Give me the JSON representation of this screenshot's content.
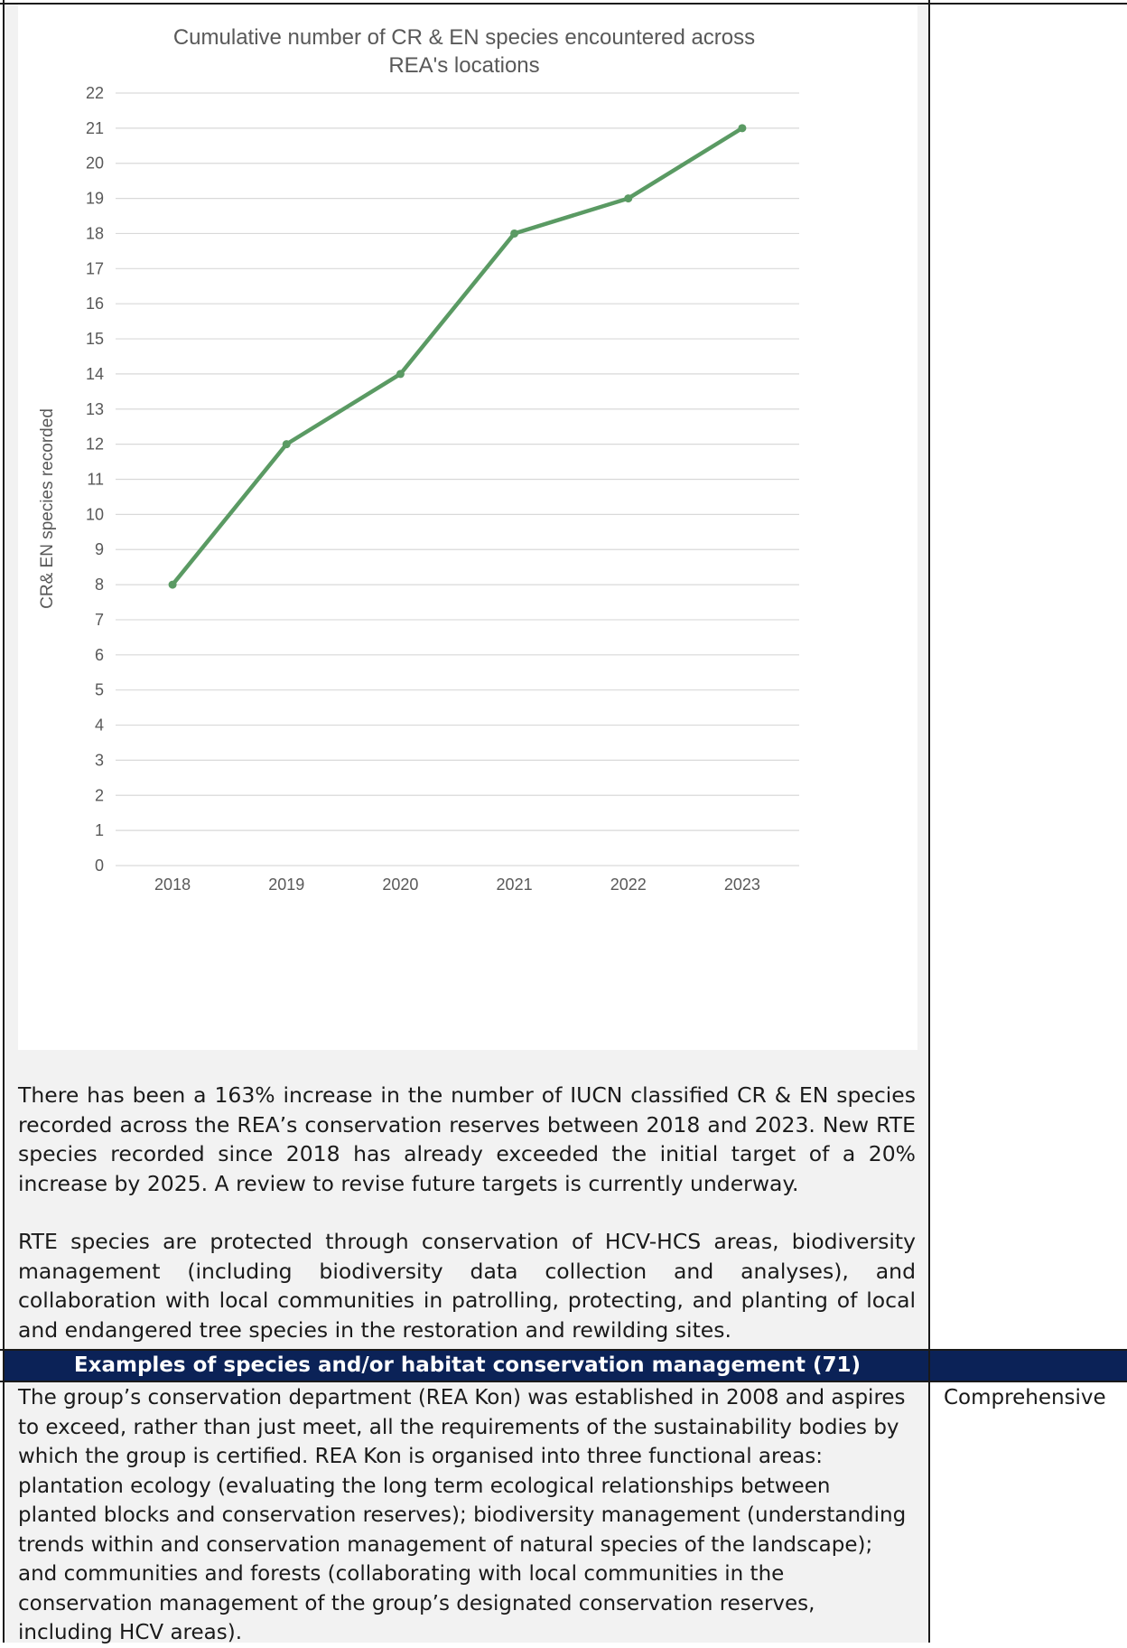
{
  "chart_data": {
    "type": "line",
    "title": "Cumulative number of CR & EN species encountered across REA's locations",
    "title_lines": [
      "Cumulative number of CR & EN species encountered across",
      "REA's locations"
    ],
    "xlabel": "",
    "ylabel": "CR& EN species recorded",
    "categories": [
      "2018",
      "2019",
      "2020",
      "2021",
      "2022",
      "2023"
    ],
    "y_ticks": [
      "0",
      "1",
      "2",
      "3",
      "4",
      "5",
      "6",
      "7",
      "8",
      "9",
      "10",
      "11",
      "12",
      "13",
      "14",
      "15",
      "16",
      "17",
      "18",
      "19",
      "20",
      "21",
      "22"
    ],
    "ylim": [
      0,
      22
    ],
    "series": [
      {
        "values": [
          8,
          12,
          14,
          18,
          19,
          21
        ]
      }
    ],
    "grid": true,
    "line_color": "#5a9a63"
  },
  "paragraphs": {
    "p1": "There has been a 163% increase in the number of IUCN classified CR & EN species recorded across the REA’s conservation reserves between 2018 and 2023. New RTE species recorded since 2018 has already exceeded the initial target of a 20% increase by 2025. A review to revise future targets is currently underway.",
    "p2": "RTE species are protected through conservation of HCV-HCS areas, biodiversity management (including biodiversity data collection and analyses), and collaboration with local communities in patrolling, protecting, and planting of local and endangered tree species in the restoration and rewilding sites."
  },
  "section": {
    "header": "Examples of species and/or habitat conservation management (71)",
    "body": "The group’s conservation department (REA Kon) was established in 2008 and aspires to exceed, rather than just meet, all the requirements of the sustainability bodies by which the group is certified. REA Kon is organised into three functional areas: plantation ecology (evaluating the long term ecological relationships between planted blocks and conservation reserves); biodiversity management (understanding trends within and conservation management of natural species of the landscape); and communities and forests (collaborating with local communities in the conservation management of the group’s designated conservation reserves, including HCV areas).",
    "rating": "Comprehensive"
  },
  "colors": {
    "header_bg": "#0b2257",
    "cell_bg": "#f2f2f2",
    "line": "#5a9a63"
  }
}
